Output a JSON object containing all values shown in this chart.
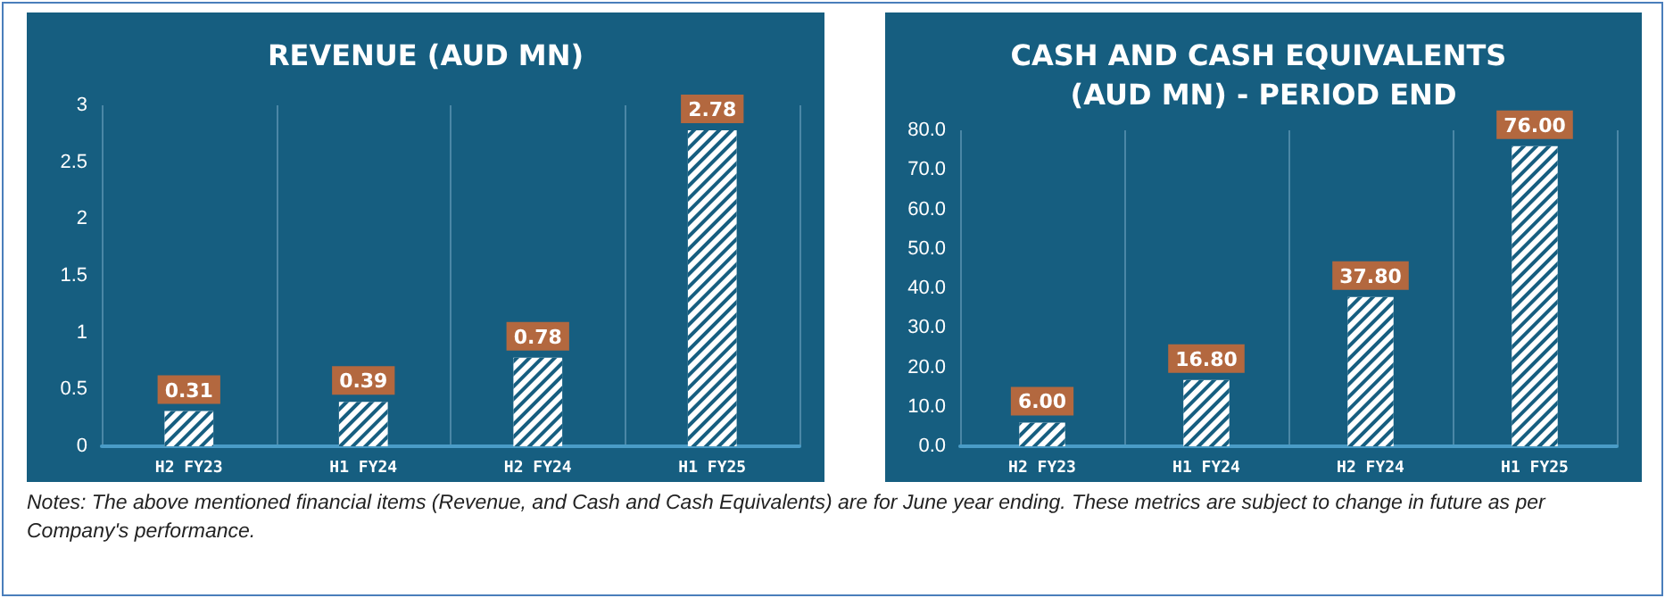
{
  "chart_data": [
    {
      "type": "bar",
      "title": "REVENUE (AUD MN)",
      "categories": [
        "H2 FY23",
        "H1 FY24",
        "H2 FY24",
        "H1 FY25"
      ],
      "values": [
        0.31,
        0.39,
        0.78,
        2.78
      ],
      "color": "#ffffff",
      "ylim": [
        0,
        3
      ],
      "yticks": [
        0,
        0.5,
        1,
        1.5,
        2,
        2.5,
        3
      ],
      "grid": "x",
      "data_labels": true,
      "annotations": [
        "Notes: The above mentioned financial items (Revenue, and Cash and Cash Equivalents) are for June year ending. These metrics are subject to change in future as per Company's performance."
      ]
    },
    {
      "type": "bar",
      "title": "CASH AND CASH EQUIVALENTS (AUD MN) - PERIOD END",
      "categories": [
        "H2 FY23",
        "H1 FY24",
        "H2 FY24",
        "H1 FY25"
      ],
      "values": [
        6.0,
        16.8,
        37.8,
        76.0
      ],
      "value_labels": [
        "6.00",
        "16.80",
        "37.80",
        "76.00"
      ],
      "color": "#ffffff",
      "ylim": [
        0,
        80
      ],
      "yticks": [
        {
          "value": 0,
          "label": "0.0"
        },
        {
          "value": 10,
          "label": "10.0"
        },
        {
          "value": 20,
          "label": "20.0"
        },
        {
          "value": 30,
          "label": "30.0"
        },
        {
          "value": 40,
          "label": "40.0"
        },
        {
          "value": 50,
          "label": "50.0"
        },
        {
          "value": 60,
          "label": "60.0"
        },
        {
          "value": 70,
          "label": "70.0"
        },
        {
          "value": 80,
          "label": "80.0"
        }
      ],
      "grid": "x"
    }
  ]
}
